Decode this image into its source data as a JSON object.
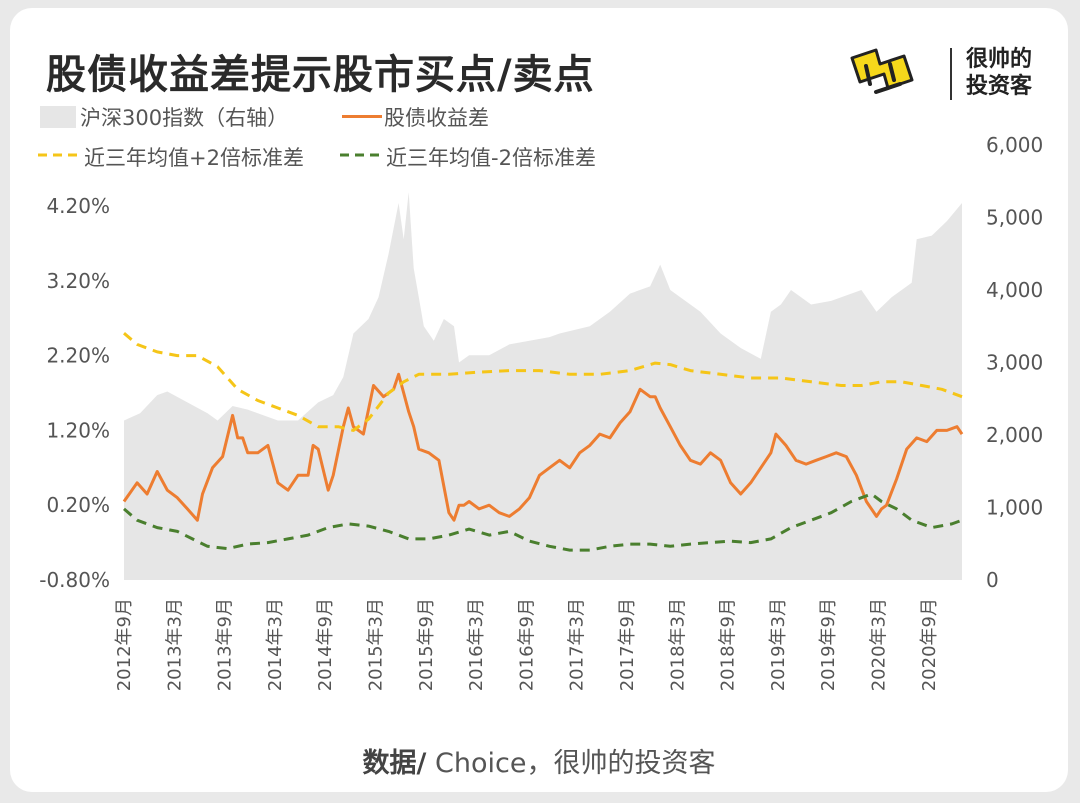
{
  "title": "股债收益差提示股市买点/卖点",
  "logo": {
    "badge_text": "",
    "line1": "很帅的",
    "line2": "投资客",
    "badge_icon": "yellow-logo-mark"
  },
  "legend": {
    "csi300": "沪深300指数（右轴）",
    "spread": "股债收益差",
    "upper": "近三年均值+2倍标准差",
    "lower": "近三年均值-2倍标准差"
  },
  "source": {
    "bold": "数据/",
    "rest": " Choice，很帅的投资客"
  },
  "colors": {
    "area": "#e6e6e6",
    "spread": "#ed7d31",
    "upper": "#f5c518",
    "lower": "#4a7f2e",
    "logo": "#f6d81b"
  },
  "chart_data": {
    "type": "line",
    "left_axis": {
      "ticks": [
        "4.20%",
        "3.20%",
        "2.20%",
        "1.20%",
        "0.20%",
        "-0.80%"
      ],
      "ylim": [
        -0.8,
        4.2
      ]
    },
    "right_axis": {
      "ticks": [
        "6,000",
        "5,000",
        "4,000",
        "3,000",
        "2,000",
        "1,000",
        "0"
      ],
      "ylim": [
        0,
        6000
      ]
    },
    "x_ticks": [
      "2012年9月",
      "2013年3月",
      "2013年9月",
      "2014年3月",
      "2014年9月",
      "2015年3月",
      "2015年9月",
      "2016年3月",
      "2016年9月",
      "2017年3月",
      "2017年9月",
      "2018年3月",
      "2018年9月",
      "2019年3月",
      "2019年9月",
      "2020年3月",
      "2020年9月"
    ],
    "x_range": [
      "2012-09",
      "2021-01"
    ],
    "series": [
      {
        "name": "沪深300指数（右轴）",
        "type": "area",
        "axis": "right",
        "x": [
          2012.67,
          2012.83,
          2013.0,
          2013.1,
          2013.3,
          2013.5,
          2013.6,
          2013.75,
          2013.9,
          2014.0,
          2014.2,
          2014.4,
          2014.6,
          2014.75,
          2014.85,
          2014.95,
          2015.1,
          2015.2,
          2015.3,
          2015.4,
          2015.45,
          2015.5,
          2015.55,
          2015.6,
          2015.65,
          2015.75,
          2015.85,
          2015.95,
          2016.0,
          2016.1,
          2016.3,
          2016.5,
          2016.7,
          2016.9,
          2017.0,
          2017.3,
          2017.5,
          2017.7,
          2017.9,
          2018.0,
          2018.1,
          2018.2,
          2018.4,
          2018.6,
          2018.8,
          2019.0,
          2019.1,
          2019.2,
          2019.3,
          2019.5,
          2019.7,
          2019.9,
          2020.0,
          2020.15,
          2020.3,
          2020.5,
          2020.55,
          2020.7,
          2020.85,
          2021.0
        ],
        "values": [
          2200,
          2300,
          2550,
          2600,
          2450,
          2300,
          2200,
          2400,
          2350,
          2300,
          2200,
          2200,
          2450,
          2550,
          2800,
          3400,
          3600,
          3900,
          4500,
          5200,
          4700,
          5350,
          4300,
          3900,
          3500,
          3300,
          3600,
          3500,
          3000,
          3100,
          3100,
          3250,
          3300,
          3350,
          3400,
          3500,
          3700,
          3950,
          4050,
          4350,
          4000,
          3900,
          3700,
          3400,
          3200,
          3050,
          3700,
          3800,
          4000,
          3800,
          3850,
          3950,
          4000,
          3700,
          3900,
          4100,
          4700,
          4750,
          4950,
          5200
        ]
      },
      {
        "name": "股债收益差",
        "type": "line",
        "axis": "left",
        "x": [
          2012.67,
          2012.8,
          2012.9,
          2013.0,
          2013.1,
          2013.2,
          2013.3,
          2013.4,
          2013.45,
          2013.55,
          2013.65,
          2013.75,
          2013.8,
          2013.85,
          2013.9,
          2014.0,
          2014.1,
          2014.2,
          2014.3,
          2014.4,
          2014.5,
          2014.55,
          2014.6,
          2014.7,
          2014.75,
          2014.85,
          2014.9,
          2014.95,
          2015.05,
          2015.15,
          2015.25,
          2015.35,
          2015.4,
          2015.45,
          2015.5,
          2015.55,
          2015.6,
          2015.7,
          2015.8,
          2015.9,
          2015.95,
          2016.0,
          2016.05,
          2016.1,
          2016.2,
          2016.3,
          2016.4,
          2016.5,
          2016.6,
          2016.7,
          2016.8,
          2016.9,
          2017.0,
          2017.1,
          2017.2,
          2017.3,
          2017.4,
          2017.5,
          2017.6,
          2017.7,
          2017.8,
          2017.9,
          2017.95,
          2018.0,
          2018.1,
          2018.2,
          2018.3,
          2018.4,
          2018.5,
          2018.6,
          2018.7,
          2018.8,
          2018.9,
          2019.0,
          2019.1,
          2019.15,
          2019.25,
          2019.35,
          2019.45,
          2019.55,
          2019.65,
          2019.75,
          2019.85,
          2019.95,
          2020.05,
          2020.15,
          2020.2,
          2020.25,
          2020.35,
          2020.45,
          2020.55,
          2020.65,
          2020.75,
          2020.85,
          2020.95,
          2021.0
        ],
        "values": [
          0.25,
          0.5,
          0.35,
          0.65,
          0.4,
          0.3,
          0.15,
          0.0,
          0.35,
          0.7,
          0.85,
          1.4,
          1.1,
          1.1,
          0.9,
          0.9,
          1.0,
          0.5,
          0.4,
          0.6,
          0.6,
          1.0,
          0.95,
          0.4,
          0.6,
          1.25,
          1.5,
          1.25,
          1.15,
          1.8,
          1.65,
          1.75,
          1.95,
          1.7,
          1.45,
          1.25,
          0.95,
          0.9,
          0.8,
          0.1,
          0.0,
          0.2,
          0.2,
          0.25,
          0.15,
          0.2,
          0.1,
          0.05,
          0.15,
          0.3,
          0.6,
          0.7,
          0.8,
          0.7,
          0.9,
          1.0,
          1.15,
          1.1,
          1.3,
          1.45,
          1.75,
          1.65,
          1.65,
          1.5,
          1.25,
          1.0,
          0.8,
          0.75,
          0.9,
          0.8,
          0.5,
          0.35,
          0.5,
          0.7,
          0.9,
          1.15,
          1.0,
          0.8,
          0.75,
          0.8,
          0.85,
          0.9,
          0.85,
          0.6,
          0.25,
          0.05,
          0.15,
          0.2,
          0.55,
          0.95,
          1.1,
          1.05,
          1.2,
          1.2,
          1.25,
          1.15
        ]
      },
      {
        "name": "近三年均值+2倍标准差",
        "type": "dashed-line",
        "axis": "left",
        "x": [
          2012.67,
          2012.8,
          2013.0,
          2013.2,
          2013.4,
          2013.6,
          2013.8,
          2014.0,
          2014.2,
          2014.4,
          2014.6,
          2014.8,
          2014.95,
          2015.1,
          2015.3,
          2015.45,
          2015.6,
          2015.9,
          2016.2,
          2016.5,
          2016.8,
          2017.1,
          2017.4,
          2017.7,
          2017.95,
          2018.1,
          2018.3,
          2018.6,
          2018.9,
          2019.2,
          2019.5,
          2019.8,
          2020.0,
          2020.2,
          2020.4,
          2020.6,
          2020.8,
          2021.0
        ],
        "values": [
          2.5,
          2.35,
          2.25,
          2.2,
          2.2,
          2.05,
          1.75,
          1.6,
          1.5,
          1.4,
          1.25,
          1.25,
          1.2,
          1.35,
          1.7,
          1.85,
          1.95,
          1.95,
          1.98,
          2.0,
          2.0,
          1.95,
          1.95,
          2.0,
          2.1,
          2.08,
          2.0,
          1.95,
          1.9,
          1.9,
          1.85,
          1.8,
          1.8,
          1.85,
          1.85,
          1.8,
          1.75,
          1.65
        ]
      },
      {
        "name": "近三年均值-2倍标准差",
        "type": "dashed-line",
        "axis": "left",
        "x": [
          2012.67,
          2012.8,
          2013.0,
          2013.2,
          2013.35,
          2013.5,
          2013.7,
          2013.9,
          2014.1,
          2014.3,
          2014.5,
          2014.7,
          2014.9,
          2015.1,
          2015.3,
          2015.5,
          2015.7,
          2015.9,
          2016.1,
          2016.3,
          2016.5,
          2016.7,
          2016.9,
          2017.1,
          2017.3,
          2017.5,
          2017.7,
          2017.9,
          2018.1,
          2018.3,
          2018.5,
          2018.7,
          2018.9,
          2019.1,
          2019.3,
          2019.5,
          2019.7,
          2019.9,
          2020.0,
          2020.1,
          2020.2,
          2020.35,
          2020.5,
          2020.7,
          2020.9,
          2021.0
        ],
        "values": [
          0.15,
          0.0,
          -0.1,
          -0.15,
          -0.25,
          -0.35,
          -0.38,
          -0.32,
          -0.3,
          -0.25,
          -0.2,
          -0.1,
          -0.05,
          -0.08,
          -0.15,
          -0.25,
          -0.25,
          -0.2,
          -0.12,
          -0.2,
          -0.15,
          -0.28,
          -0.35,
          -0.4,
          -0.4,
          -0.35,
          -0.32,
          -0.32,
          -0.35,
          -0.32,
          -0.3,
          -0.28,
          -0.3,
          -0.25,
          -0.1,
          0.0,
          0.1,
          0.25,
          0.3,
          0.35,
          0.25,
          0.15,
          0.0,
          -0.1,
          -0.05,
          0.0
        ]
      }
    ]
  }
}
